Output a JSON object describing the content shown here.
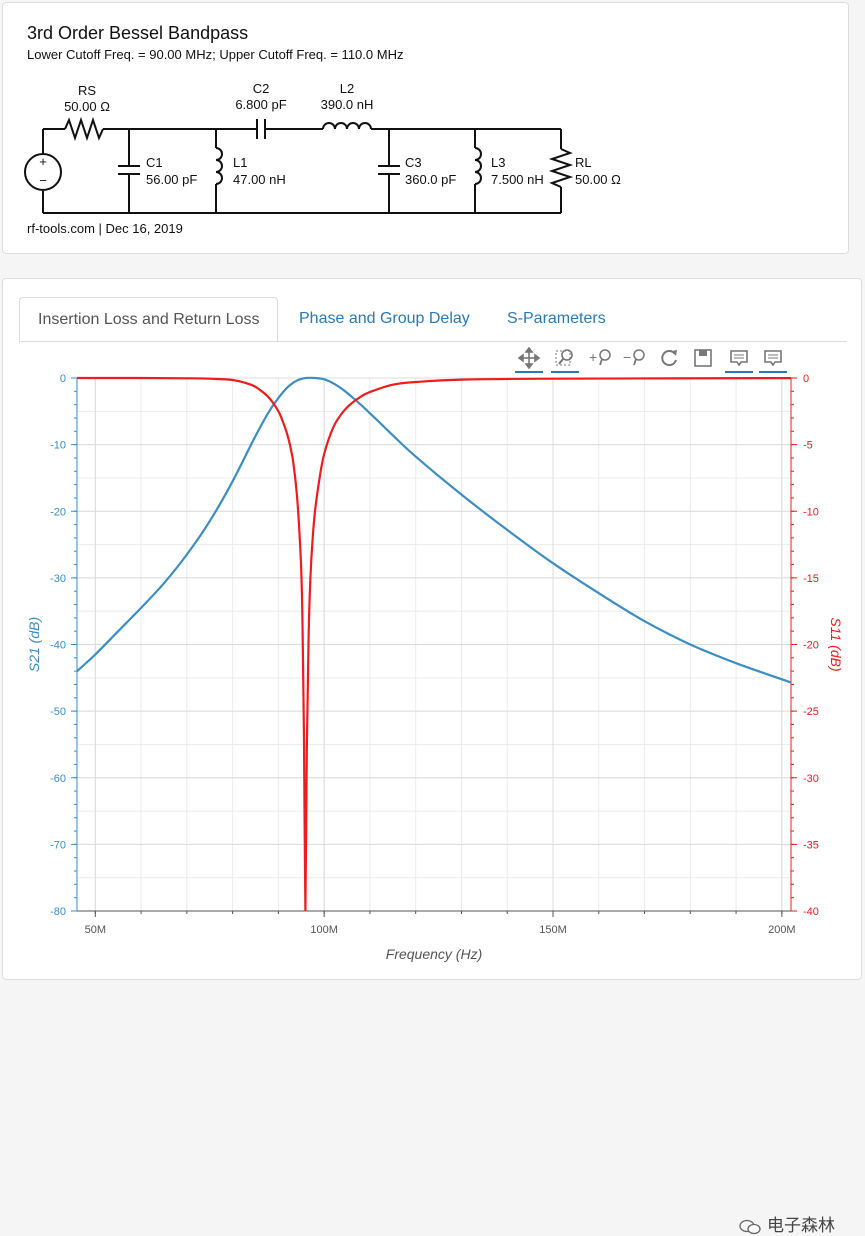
{
  "schematic": {
    "title": "3rd Order Bessel Bandpass",
    "subtitle": "Lower Cutoff Freq. = 90.00 MHz; Upper Cutoff Freq. = 110.0 MHz",
    "footer": "rf-tools.com | Dec 16, 2019",
    "components": {
      "RS": {
        "name": "RS",
        "value": "50.00 Ω"
      },
      "C1": {
        "name": "C1",
        "value": "56.00 pF"
      },
      "L1": {
        "name": "L1",
        "value": "47.00 nH"
      },
      "C2": {
        "name": "C2",
        "value": "6.800 pF"
      },
      "L2": {
        "name": "L2",
        "value": "390.0 nH"
      },
      "C3": {
        "name": "C3",
        "value": "360.0 pF"
      },
      "L3": {
        "name": "L3",
        "value": "7.500 nH"
      },
      "RL": {
        "name": "RL",
        "value": "50.00 Ω"
      }
    },
    "source": {
      "plus": "+",
      "minus": "−"
    }
  },
  "tabs": [
    {
      "label": "Insertion Loss and Return Loss"
    },
    {
      "label": "Phase and Group Delay"
    },
    {
      "label": "S-Parameters"
    }
  ],
  "toolbar": [
    "pan-icon",
    "box-zoom-icon",
    "zoom-in-icon",
    "zoom-out-icon",
    "reset-icon",
    "save-icon",
    "hover-icon",
    "hover-icon"
  ],
  "colors": {
    "s21": "#3a8ec4",
    "s11": "#ee1c1c",
    "accent": "#2a7ab8"
  },
  "watermark": "电子森林",
  "chart_data": {
    "type": "line",
    "xlabel": "Frequency (Hz)",
    "ylabel_left": "S21 (dB)",
    "ylabel_right": "S11 (dB)",
    "xlim": [
      46,
      202
    ],
    "x_ticks": [
      50,
      100,
      150,
      200
    ],
    "x_tick_labels": [
      "50M",
      "100M",
      "150M",
      "200M"
    ],
    "ylim_left": [
      -80,
      0
    ],
    "ylim_right": [
      -40,
      0
    ],
    "y_ticks_left": [
      0,
      -10,
      -20,
      -30,
      -40,
      -50,
      -60,
      -70,
      -80
    ],
    "y_ticks_right": [
      0,
      -5,
      -10,
      -15,
      -20,
      -25,
      -30,
      -35,
      -40
    ],
    "grid": true,
    "series": [
      {
        "name": "S21 (dB)",
        "axis": "left",
        "x": [
          46,
          50,
          55,
          60,
          65,
          70,
          75,
          80,
          85,
          88,
          90,
          92,
          94,
          96,
          98,
          100,
          102,
          104,
          106,
          108,
          110,
          112,
          115,
          120,
          130,
          140,
          150,
          160,
          170,
          180,
          190,
          202
        ],
        "y": [
          -44,
          -41.5,
          -38,
          -34.5,
          -30.8,
          -26.5,
          -21.5,
          -15.5,
          -8.7,
          -5.0,
          -3.0,
          -1.4,
          -0.4,
          0,
          0,
          -0.2,
          -0.8,
          -1.7,
          -2.8,
          -4.0,
          -5.3,
          -6.6,
          -8.6,
          -11.8,
          -17.5,
          -22.8,
          -27.8,
          -32.3,
          -36.5,
          -40,
          -42.8,
          -45.7
        ]
      },
      {
        "name": "S11 (dB)",
        "axis": "right",
        "x": [
          46,
          60,
          70,
          75,
          80,
          84,
          86,
          88,
          90,
          91,
          92,
          93,
          93.5,
          94,
          94.5,
          95,
          95.3,
          95.6,
          95.9,
          96.2,
          96.6,
          97,
          97.5,
          98,
          99,
          100,
          102,
          104,
          106,
          108,
          110,
          115,
          120,
          130,
          150,
          202
        ],
        "y": [
          0,
          0,
          -0.02,
          -0.05,
          -0.15,
          -0.5,
          -0.9,
          -1.5,
          -2.5,
          -3.3,
          -4.3,
          -5.8,
          -7,
          -8.6,
          -11,
          -14.5,
          -19,
          -27,
          -40,
          -28,
          -19.5,
          -15,
          -12,
          -10,
          -7.5,
          -5.7,
          -3.7,
          -2.6,
          -1.9,
          -1.4,
          -1.05,
          -0.5,
          -0.3,
          -0.12,
          -0.05,
          -0.01
        ]
      }
    ]
  }
}
